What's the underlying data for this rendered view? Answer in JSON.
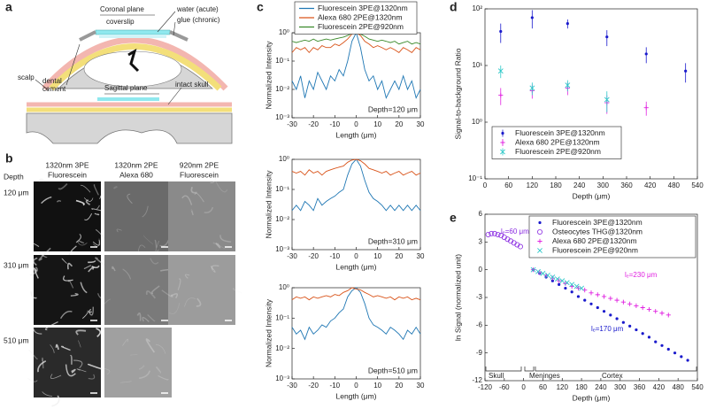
{
  "panel_labels": [
    "a",
    "b",
    "c",
    "d",
    "e"
  ],
  "diagram": {
    "labels": [
      "Coronal plane",
      "coverslip",
      "water (acute)",
      "glue (chronic)",
      "scalp",
      "dental",
      "cement",
      "Sagittal plane",
      "intact skull"
    ]
  },
  "images": {
    "depth_header": "Depth",
    "columns": [
      [
        "1320nm 3PE",
        "Fluorescein"
      ],
      [
        "1320nm 2PE",
        "Alexa 680"
      ],
      [
        "920nm 2PE",
        "Fluorescein"
      ]
    ],
    "rows": [
      "120 μm",
      "310 μm",
      "510 μm"
    ]
  },
  "chart_data": [
    {
      "type": "line",
      "ylog": true,
      "legend": "top",
      "x": [
        -30,
        -28,
        -26,
        -24,
        -22,
        -20,
        -18,
        -16,
        -14,
        -12,
        -10,
        -8,
        -6,
        -4,
        -2,
        0,
        2,
        4,
        6,
        8,
        10,
        12,
        14,
        16,
        18,
        20,
        22,
        24,
        26,
        28,
        30
      ],
      "xlim": [
        -30,
        30
      ],
      "xticks": [
        -30,
        -20,
        -10,
        0,
        10,
        20,
        30
      ],
      "ylim": [
        0.001,
        1
      ],
      "yticks": [
        {
          "value": 0.001,
          "label": "10⁻³"
        },
        {
          "value": 0.01,
          "label": "10⁻²"
        },
        {
          "value": 0.1,
          "label": "10⁻¹"
        },
        {
          "value": 1,
          "label": "10⁰"
        }
      ],
      "xlabel": "Length (μm)",
      "ylabel": "Normalized Intensity",
      "annotation": "Depth=120 μm",
      "series": [
        {
          "name": "Fluorescein 3PE@1320nm",
          "color": "#1f77b4",
          "values": [
            0.02,
            0.01,
            0.03,
            0.005,
            0.02,
            0.01,
            0.04,
            0.02,
            0.01,
            0.03,
            0.02,
            0.05,
            0.03,
            0.1,
            0.5,
            1,
            0.3,
            0.05,
            0.02,
            0.03,
            0.01,
            0.02,
            0.005,
            0.01,
            0.02,
            0.01,
            0.03,
            0.01,
            0.02,
            0.005,
            0.01
          ]
        },
        {
          "name": "Alexa 680 2PE@1320nm",
          "color": "#d95319",
          "values": [
            0.2,
            0.3,
            0.25,
            0.3,
            0.2,
            0.3,
            0.25,
            0.35,
            0.3,
            0.3,
            0.4,
            0.35,
            0.45,
            0.6,
            0.9,
            1,
            0.8,
            0.5,
            0.4,
            0.3,
            0.35,
            0.3,
            0.25,
            0.3,
            0.25,
            0.2,
            0.3,
            0.25,
            0.2,
            0.3,
            0.25
          ]
        },
        {
          "name": "Fluorescein 2PE@920nm",
          "color": "#3a8a2a",
          "values": [
            0.5,
            0.45,
            0.5,
            0.55,
            0.5,
            0.6,
            0.5,
            0.55,
            0.6,
            0.55,
            0.6,
            0.65,
            0.7,
            0.8,
            0.95,
            1,
            0.9,
            0.75,
            0.6,
            0.55,
            0.5,
            0.55,
            0.5,
            0.45,
            0.5,
            0.4,
            0.45,
            0.5,
            0.4,
            0.45,
            0.4
          ]
        }
      ]
    },
    {
      "type": "line",
      "ylog": true,
      "x": [
        -30,
        -28,
        -26,
        -24,
        -22,
        -20,
        -18,
        -16,
        -14,
        -12,
        -10,
        -8,
        -6,
        -4,
        -2,
        0,
        2,
        4,
        6,
        8,
        10,
        12,
        14,
        16,
        18,
        20,
        22,
        24,
        26,
        28,
        30
      ],
      "xlim": [
        -30,
        30
      ],
      "xticks": [
        -30,
        -20,
        -10,
        0,
        10,
        20,
        30
      ],
      "ylim": [
        0.001,
        1
      ],
      "yticks": [
        {
          "value": 0.001,
          "label": "10⁻³"
        },
        {
          "value": 0.01,
          "label": "10⁻²"
        },
        {
          "value": 0.1,
          "label": "10⁻¹"
        },
        {
          "value": 1,
          "label": "10⁰"
        }
      ],
      "xlabel": "Length (μm)",
      "ylabel": "Normalized Intensity",
      "annotation": "Depth=310 μm",
      "series": [
        {
          "color": "#1f77b4",
          "values": [
            0.02,
            0.03,
            0.02,
            0.04,
            0.03,
            0.02,
            0.05,
            0.03,
            0.04,
            0.05,
            0.06,
            0.08,
            0.1,
            0.3,
            0.7,
            1,
            0.6,
            0.2,
            0.08,
            0.05,
            0.04,
            0.03,
            0.02,
            0.03,
            0.02,
            0.03,
            0.02,
            0.03,
            0.02,
            0.03,
            0.02
          ]
        },
        {
          "color": "#d95319",
          "values": [
            0.4,
            0.35,
            0.4,
            0.3,
            0.45,
            0.35,
            0.4,
            0.3,
            0.4,
            0.45,
            0.5,
            0.55,
            0.6,
            0.8,
            0.95,
            1,
            0.9,
            0.7,
            0.5,
            0.45,
            0.4,
            0.35,
            0.4,
            0.3,
            0.35,
            0.4,
            0.3,
            0.35,
            0.4,
            0.3,
            0.35
          ]
        }
      ]
    },
    {
      "type": "line",
      "ylog": true,
      "x": [
        -30,
        -28,
        -26,
        -24,
        -22,
        -20,
        -18,
        -16,
        -14,
        -12,
        -10,
        -8,
        -6,
        -4,
        -2,
        0,
        2,
        4,
        6,
        8,
        10,
        12,
        14,
        16,
        18,
        20,
        22,
        24,
        26,
        28,
        30
      ],
      "xlim": [
        -30,
        30
      ],
      "xticks": [
        -30,
        -20,
        -10,
        0,
        10,
        20,
        30
      ],
      "ylim": [
        0.001,
        1
      ],
      "yticks": [
        {
          "value": 0.001,
          "label": "10⁻³"
        },
        {
          "value": 0.01,
          "label": "10⁻²"
        },
        {
          "value": 0.1,
          "label": "10⁻¹"
        },
        {
          "value": 1,
          "label": "10⁰"
        }
      ],
      "xlabel": "Length (μm)",
      "ylabel": "Normalized Intensity",
      "annotation": "Depth=510 μm",
      "series": [
        {
          "color": "#1f77b4",
          "values": [
            0.05,
            0.03,
            0.04,
            0.02,
            0.05,
            0.03,
            0.04,
            0.06,
            0.05,
            0.08,
            0.1,
            0.15,
            0.2,
            0.5,
            0.8,
            1,
            0.7,
            0.3,
            0.1,
            0.06,
            0.05,
            0.04,
            0.03,
            0.05,
            0.04,
            0.03,
            0.02,
            0.04,
            0.03,
            0.05,
            0.03
          ]
        },
        {
          "color": "#d95319",
          "values": [
            0.4,
            0.5,
            0.45,
            0.5,
            0.4,
            0.5,
            0.45,
            0.5,
            0.55,
            0.5,
            0.6,
            0.55,
            0.7,
            0.8,
            1,
            0.9,
            0.85,
            0.7,
            0.6,
            0.5,
            0.55,
            0.5,
            0.45,
            0.5,
            0.4,
            0.5,
            0.45,
            0.5,
            0.4,
            0.45,
            0.4
          ]
        }
      ]
    },
    {
      "type": "scatter",
      "ylog": true,
      "legend": "lower center",
      "xlim": [
        0,
        540
      ],
      "xticks": [
        0,
        60,
        120,
        180,
        240,
        300,
        360,
        420,
        480,
        540
      ],
      "ylim": [
        0.1,
        100
      ],
      "yticks": [
        {
          "value": 0.1,
          "label": "10⁻¹"
        },
        {
          "value": 1,
          "label": "10⁰"
        },
        {
          "value": 10,
          "label": "10¹"
        },
        {
          "value": 100,
          "label": "10²"
        }
      ],
      "xlabel": "Depth (μm)",
      "ylabel": "Signal-to-background Ratio",
      "series": [
        {
          "name": "Fluorescein 3PE@1320nm",
          "color": "#1a1acc",
          "marker": "dot",
          "x": [
            40,
            120,
            210,
            310,
            410,
            510
          ],
          "values": [
            40,
            70,
            55,
            32,
            16,
            8
          ],
          "errors": [
            15,
            25,
            10,
            10,
            5,
            3
          ]
        },
        {
          "name": "Alexa 680 2PE@1320nm",
          "color": "#e020e0",
          "marker": "plus",
          "x": [
            40,
            120,
            210,
            310,
            410
          ],
          "values": [
            3,
            3.6,
            4,
            2.2,
            1.8
          ],
          "errors": [
            1,
            1,
            1,
            0.8,
            0.5
          ]
        },
        {
          "name": "Fluorescein 2PE@920nm",
          "color": "#2cc8c8",
          "marker": "cross",
          "x": [
            40,
            120,
            210,
            310
          ],
          "values": [
            8,
            4,
            4.5,
            2.5
          ],
          "errors": [
            2,
            1,
            1,
            1
          ]
        }
      ]
    },
    {
      "type": "scatter",
      "legend": "upper right",
      "xlim": [
        -120,
        540
      ],
      "xticks": [
        -120,
        -60,
        0,
        60,
        120,
        180,
        240,
        300,
        360,
        420,
        480,
        540
      ],
      "ylim": [
        -12,
        6
      ],
      "yticks": [
        -12,
        -9,
        -6,
        -3,
        0,
        3,
        6
      ],
      "xlabel": "Depth (μm)",
      "ylabel": "ln Signal (normalized unit)",
      "annotations": [
        "lₑ=60 μm",
        "lₑ=230 μm",
        "lₑ=170 μm"
      ],
      "regions": [
        "Skull",
        "Meninges",
        "Cortex"
      ],
      "series": [
        {
          "name": "Fluorescein 3PE@1320nm",
          "color": "#1a1acc",
          "marker": "dot",
          "x": [
            30,
            50,
            70,
            90,
            110,
            130,
            150,
            170,
            190,
            210,
            230,
            250,
            270,
            290,
            310,
            330,
            350,
            370,
            390,
            410,
            430,
            450,
            470,
            490,
            510
          ],
          "values": [
            0,
            -0.4,
            -0.8,
            -1.2,
            -1.6,
            -2.0,
            -2.4,
            -2.9,
            -3.3,
            -3.7,
            -4.1,
            -4.5,
            -4.9,
            -5.3,
            -5.7,
            -6.1,
            -6.5,
            -6.9,
            -7.3,
            -7.8,
            -8.2,
            -8.6,
            -9.0,
            -9.4,
            -9.8
          ]
        },
        {
          "name": "Osteocytes THG@1320nm",
          "color": "#8a2be2",
          "marker": "circle",
          "x": [
            -110,
            -100,
            -90,
            -80,
            -70,
            -60,
            -50,
            -40,
            -30,
            -20,
            -10
          ],
          "values": [
            3.8,
            3.9,
            3.9,
            3.8,
            3.7,
            3.5,
            3.3,
            3.1,
            2.9,
            2.7,
            2.5
          ]
        },
        {
          "name": "Alexa 680 2PE@1320nm",
          "color": "#e020e0",
          "marker": "plus",
          "x": [
            30,
            50,
            70,
            90,
            110,
            130,
            150,
            170,
            190,
            210,
            230,
            250,
            270,
            290,
            310,
            330,
            350,
            370,
            390,
            410,
            430,
            450
          ],
          "values": [
            0,
            -0.3,
            -0.6,
            -0.9,
            -1.2,
            -1.5,
            -1.8,
            -2.0,
            -2.2,
            -2.5,
            -2.7,
            -2.9,
            -3.1,
            -3.3,
            -3.5,
            -3.7,
            -3.9,
            -4.1,
            -4.3,
            -4.5,
            -4.7,
            -4.9
          ]
        },
        {
          "name": "Fluorescein 2PE@920nm",
          "color": "#2cc8c8",
          "marker": "cross",
          "x": [
            30,
            45,
            60,
            75,
            90,
            105,
            120,
            135,
            150,
            165,
            180
          ],
          "values": [
            0,
            -0.2,
            -0.4,
            -0.6,
            -0.8,
            -1.0,
            -1.2,
            -1.4,
            -1.6,
            -1.8,
            -2.0
          ]
        }
      ]
    }
  ]
}
